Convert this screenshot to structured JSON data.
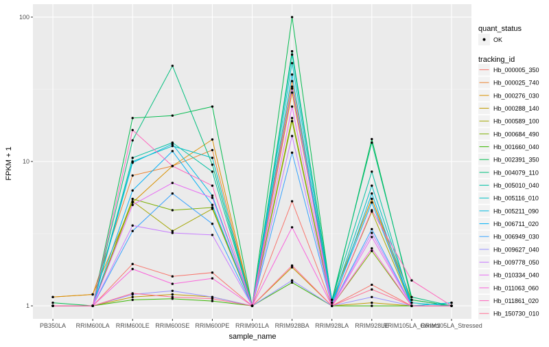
{
  "chart_data": {
    "type": "line",
    "xlabel": "sample_name",
    "ylabel": "FPKM + 1",
    "y_scale": "log10",
    "ylim": [
      1,
      100
    ],
    "y_ticks": [
      1,
      10,
      100
    ],
    "y_tick_labels": [
      "1",
      "10",
      "100"
    ],
    "categories": [
      "PB350LA",
      "RRIM600LA",
      "RRIM600LE",
      "RRIM600SE",
      "RRIM600PE",
      "RRIM901LA",
      "RRIM928BA",
      "RRIM928LA",
      "RRIM928LE",
      "RRIM105LA_Control",
      "RRIM105LA_Stressed"
    ],
    "category_labels": [
      "PB350LA",
      "RRIM600LA",
      "RRIM600LE",
      "RRIM600SE",
      "RRIM600PE",
      "RRIM901LA",
      "RRIM928BA",
      "RRIM928LA",
      "RRIM928LE",
      "RRIM105LA_Control",
      "RRIM105LA_Stressed"
    ],
    "grid": true,
    "legend_placement": "right",
    "color_legend_title": "tracking_id",
    "shape_legend_title": "quant_status",
    "shape_legend_label": "OK",
    "series": [
      {
        "name": "Hb_000005_350",
        "color": "#F8766D",
        "values": [
          1.0,
          1.0,
          1.95,
          1.6,
          1.7,
          1.0,
          5.3,
          1.0,
          1.4,
          1.0,
          1.0
        ]
      },
      {
        "name": "Hb_000025_740",
        "color": "#EA8331",
        "values": [
          1.15,
          1.2,
          8.0,
          9.3,
          12.0,
          1.0,
          36.0,
          1.1,
          5.5,
          1.0,
          1.0
        ]
      },
      {
        "name": "Hb_000276_030",
        "color": "#D89000",
        "values": [
          1.15,
          1.2,
          5.2,
          9.3,
          14.2,
          1.0,
          30.0,
          1.1,
          5.5,
          1.1,
          1.0
        ]
      },
      {
        "name": "Hb_000288_140",
        "color": "#C09B00",
        "values": [
          1.0,
          1.0,
          1.15,
          1.2,
          1.15,
          1.0,
          1.85,
          1.0,
          1.05,
          1.0,
          1.0
        ]
      },
      {
        "name": "Hb_000589_100",
        "color": "#A3A500",
        "values": [
          1.0,
          1.0,
          5.3,
          3.3,
          4.7,
          1.0,
          20.0,
          1.0,
          4.5,
          1.0,
          1.0
        ]
      },
      {
        "name": "Hb_000684_490",
        "color": "#7CAE00",
        "values": [
          1.0,
          1.0,
          5.5,
          4.6,
          4.8,
          1.0,
          19.0,
          1.0,
          2.4,
          1.0,
          1.0
        ]
      },
      {
        "name": "Hb_001660_040",
        "color": "#39B600",
        "values": [
          1.0,
          1.0,
          1.1,
          1.12,
          1.08,
          1.0,
          1.45,
          1.0,
          1.0,
          1.0,
          1.0
        ]
      },
      {
        "name": "Hb_002391_350",
        "color": "#00BB4E",
        "values": [
          1.05,
          1.0,
          20.0,
          20.8,
          24.0,
          1.0,
          100.0,
          1.05,
          14.3,
          1.1,
          1.0
        ]
      },
      {
        "name": "Hb_004079_110",
        "color": "#00BF7D",
        "values": [
          1.0,
          1.0,
          14.0,
          46.0,
          9.5,
          1.0,
          58.0,
          1.1,
          13.5,
          1.15,
          1.0
        ]
      },
      {
        "name": "Hb_005010_040",
        "color": "#00C1A3",
        "values": [
          1.0,
          1.0,
          10.6,
          13.5,
          8.5,
          1.0,
          55.0,
          1.1,
          8.5,
          1.0,
          1.05
        ]
      },
      {
        "name": "Hb_005116_010",
        "color": "#00BFC4",
        "values": [
          1.0,
          1.0,
          10.0,
          12.8,
          10.6,
          1.0,
          48.0,
          1.05,
          6.8,
          1.05,
          1.0
        ]
      },
      {
        "name": "Hb_005211_090",
        "color": "#00BAE0",
        "values": [
          1.0,
          1.0,
          9.8,
          13.2,
          5.8,
          1.0,
          40.0,
          1.0,
          6.0,
          1.0,
          1.05
        ]
      },
      {
        "name": "Hb_006711_020",
        "color": "#00B0F6",
        "values": [
          1.0,
          1.0,
          6.3,
          11.8,
          5.0,
          1.0,
          33.0,
          1.05,
          5.2,
          1.0,
          1.0
        ]
      },
      {
        "name": "Hb_006949_030",
        "color": "#35A2FF",
        "values": [
          1.0,
          1.0,
          3.3,
          6.0,
          3.7,
          1.0,
          11.5,
          1.0,
          3.4,
          1.0,
          1.0
        ]
      },
      {
        "name": "Hb_009627_040",
        "color": "#9590FF",
        "values": [
          1.0,
          1.0,
          1.2,
          1.27,
          1.15,
          1.0,
          1.5,
          1.0,
          1.15,
          1.0,
          1.0
        ]
      },
      {
        "name": "Hb_009778_050",
        "color": "#C77CFF",
        "values": [
          1.0,
          1.0,
          3.6,
          3.2,
          3.1,
          1.0,
          15.0,
          1.0,
          3.2,
          1.0,
          1.0
        ]
      },
      {
        "name": "Hb_010334_040",
        "color": "#E76BF3",
        "values": [
          1.0,
          1.0,
          5.0,
          7.1,
          5.6,
          1.0,
          24.0,
          1.0,
          3.0,
          1.0,
          1.0
        ]
      },
      {
        "name": "Hb_011063_060",
        "color": "#FA62DB",
        "values": [
          1.0,
          1.0,
          1.8,
          1.42,
          1.55,
          1.0,
          3.5,
          1.0,
          2.5,
          1.0,
          1.0
        ]
      },
      {
        "name": "Hb_011861_020",
        "color": "#FF62BC",
        "values": [
          1.0,
          1.0,
          16.5,
          9.3,
          6.8,
          1.0,
          32.0,
          1.0,
          4.6,
          1.5,
          1.0
        ]
      },
      {
        "name": "Hb_150730_010",
        "color": "#FF6C91",
        "values": [
          1.0,
          1.0,
          1.22,
          1.15,
          1.12,
          1.0,
          1.9,
          1.0,
          1.3,
          1.0,
          1.0
        ]
      }
    ]
  }
}
